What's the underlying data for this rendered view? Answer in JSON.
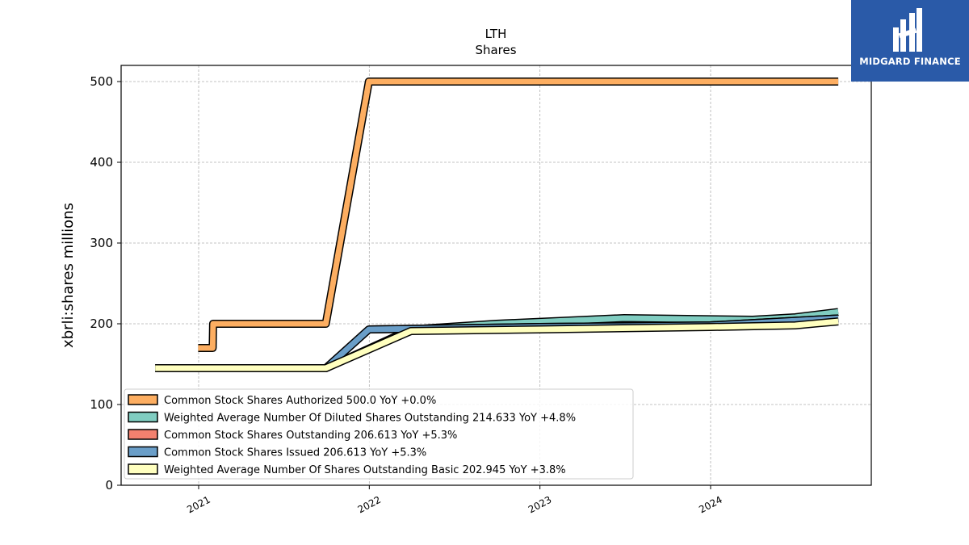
{
  "logo": {
    "text": "MIDGARD FINANCE",
    "background": "#2a5aa8",
    "icon": "midgard-logo-icon"
  },
  "chart_data": {
    "type": "line",
    "title": "LTH",
    "subtitle": "Shares",
    "ylabel": "xbrli:shares millions",
    "xlabel": "",
    "ylim": [
      0,
      520
    ],
    "y_ticks": [
      0,
      100,
      200,
      300,
      400,
      500
    ],
    "x_ticks": [
      "2021",
      "2022",
      "2023",
      "2024"
    ],
    "grid": true,
    "legend_position": "lower-left",
    "series": [
      {
        "name": "Common Stock Shares Authorized",
        "legend": "Common Stock Shares Authorized  500.0 YoY +0.0%",
        "color": "#fdae61",
        "points": [
          [
            "2020-12-31",
            170
          ],
          [
            "2021-01-31",
            170
          ],
          [
            "2021-02-01",
            200
          ],
          [
            "2021-09-30",
            200
          ],
          [
            "2021-12-31",
            500
          ],
          [
            "2024-09-30",
            500
          ]
        ]
      },
      {
        "name": "Weighted Average Number Of Diluted Shares Outstanding",
        "legend": "Weighted Average Number Of Diluted Shares Outstanding  214.633 YoY +4.8%",
        "color": "#80cdc1",
        "points": [
          [
            "2020-09-30",
            145
          ],
          [
            "2021-09-30",
            145
          ],
          [
            "2022-03-31",
            193
          ],
          [
            "2022-09-30",
            200
          ],
          [
            "2023-06-30",
            207
          ],
          [
            "2024-03-31",
            205
          ],
          [
            "2024-06-30",
            208
          ],
          [
            "2024-09-30",
            214.633
          ]
        ]
      },
      {
        "name": "Common Stock Shares Outstanding",
        "legend": "Common Stock Shares Outstanding  206.613 YoY +5.3%",
        "color": "#f4816f",
        "points": [
          [
            "2021-12-31",
            193
          ],
          [
            "2022-12-31",
            196
          ],
          [
            "2023-12-31",
            198
          ],
          [
            "2024-09-30",
            206.613
          ]
        ]
      },
      {
        "name": "Common Stock Shares Issued",
        "legend": "Common Stock Shares Issued  206.613 YoY +5.3%",
        "color": "#6a9ec8",
        "points": [
          [
            "2021-09-30",
            145
          ],
          [
            "2021-12-31",
            193
          ],
          [
            "2022-12-31",
            196
          ],
          [
            "2023-12-31",
            198
          ],
          [
            "2024-09-30",
            206.613
          ]
        ]
      },
      {
        "name": "Weighted Average Number Of Shares Outstanding Basic",
        "legend": "Weighted Average Number Of Shares Outstanding Basic  202.945 YoY +3.8%",
        "color": "#ffffbf",
        "points": [
          [
            "2020-09-30",
            145
          ],
          [
            "2021-09-30",
            145
          ],
          [
            "2022-03-31",
            191
          ],
          [
            "2022-12-31",
            193
          ],
          [
            "2023-12-31",
            196
          ],
          [
            "2024-06-30",
            198
          ],
          [
            "2024-09-30",
            202.945
          ]
        ]
      }
    ]
  }
}
